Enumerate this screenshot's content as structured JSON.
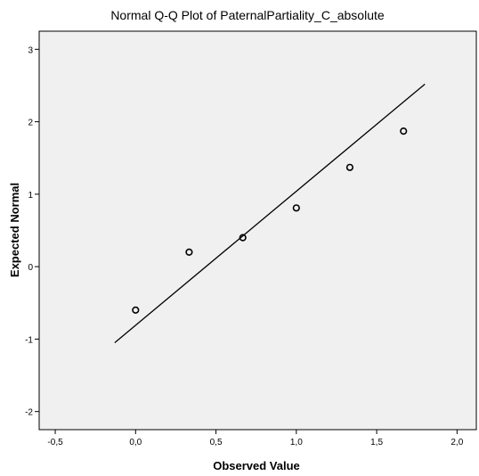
{
  "chart_data": {
    "type": "scatter",
    "title": "Normal Q-Q Plot of PaternalPartiality_C_absolute",
    "xlabel": "Observed Value",
    "ylabel": "Expected Normal",
    "xlim": [
      -0.6,
      2.12
    ],
    "ylim": [
      -2.25,
      3.25
    ],
    "x_ticks": [
      -0.5,
      0.0,
      0.5,
      1.0,
      1.5,
      2.0
    ],
    "x_tick_labels": [
      "-0,5",
      "0,0",
      "0,5",
      "1,0",
      "1,5",
      "2,0"
    ],
    "y_ticks": [
      -2,
      -1,
      0,
      1,
      2,
      3
    ],
    "y_tick_labels": [
      "-2",
      "-1",
      "0",
      "1",
      "2",
      "3"
    ],
    "points": [
      {
        "x": 0.0,
        "y": -0.6
      },
      {
        "x": 0.333,
        "y": 0.2
      },
      {
        "x": 0.667,
        "y": 0.4
      },
      {
        "x": 1.0,
        "y": 0.81
      },
      {
        "x": 1.333,
        "y": 1.37
      },
      {
        "x": 1.667,
        "y": 1.87
      }
    ],
    "reference_line": [
      {
        "x": -0.13,
        "y": -1.05
      },
      {
        "x": 1.8,
        "y": 2.52
      }
    ],
    "plot_background": "#f0f0f0",
    "grid": false
  }
}
